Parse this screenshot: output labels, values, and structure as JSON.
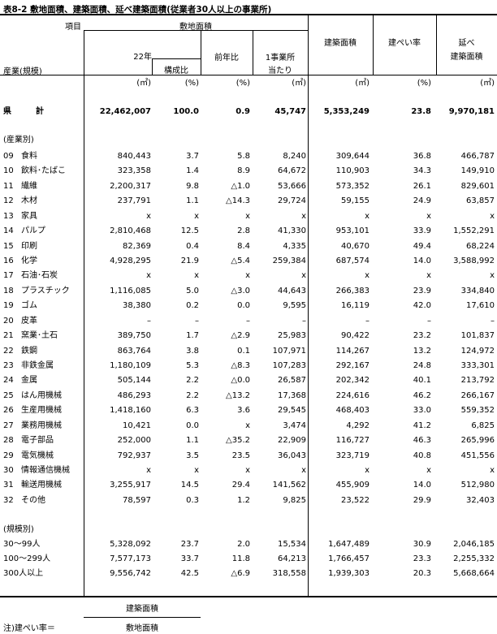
{
  "title": "表8-2  敷地面積、建築面積、延べ建築面積(従業者30人以上の事業所)",
  "header": {
    "item": "項目",
    "industry": "産業(規模)",
    "site_area": "敷地面積",
    "year": "22年",
    "composition": "構成比",
    "yoy": "前年比",
    "per_est_1": "1事業所",
    "per_est_2": "当たり",
    "building_area": "建築面積",
    "coverage": "建ぺい率",
    "floor_1": "延べ",
    "floor_2": "建築面積"
  },
  "units": [
    "(㎡)",
    "(%)",
    "(%)",
    "(㎡)",
    "(㎡)",
    "(%)",
    "(㎡)"
  ],
  "total": {
    "label_1": "県",
    "label_2": "計",
    "values": [
      "22,462,007",
      "100.0",
      "0.9",
      "45,747",
      "5,353,249",
      "23.8",
      "9,970,181"
    ]
  },
  "industry_section": "(産業別)",
  "industries": [
    {
      "code": "09",
      "name": "食料",
      "values": [
        "840,443",
        "3.7",
        "5.8",
        "8,240",
        "309,644",
        "36.8",
        "466,787"
      ]
    },
    {
      "code": "10",
      "name": "飲料･たばこ",
      "values": [
        "323,358",
        "1.4",
        "8.9",
        "64,672",
        "110,903",
        "34.3",
        "149,910"
      ]
    },
    {
      "code": "11",
      "name": "繊維",
      "values": [
        "2,200,317",
        "9.8",
        "△1.0",
        "53,666",
        "573,352",
        "26.1",
        "829,601"
      ]
    },
    {
      "code": "12",
      "name": "木材",
      "values": [
        "237,791",
        "1.1",
        "△14.3",
        "29,724",
        "59,155",
        "24.9",
        "63,857"
      ]
    },
    {
      "code": "13",
      "name": "家具",
      "values": [
        "x",
        "x",
        "x",
        "x",
        "x",
        "x",
        "x"
      ]
    },
    {
      "code": "14",
      "name": "パルプ",
      "values": [
        "2,810,468",
        "12.5",
        "2.8",
        "41,330",
        "953,101",
        "33.9",
        "1,552,291"
      ]
    },
    {
      "code": "15",
      "name": "印刷",
      "values": [
        "82,369",
        "0.4",
        "8.4",
        "4,335",
        "40,670",
        "49.4",
        "68,224"
      ]
    },
    {
      "code": "16",
      "name": "化学",
      "values": [
        "4,928,295",
        "21.9",
        "△5.4",
        "259,384",
        "687,574",
        "14.0",
        "3,588,992"
      ]
    },
    {
      "code": "17",
      "name": "石油･石炭",
      "values": [
        "x",
        "x",
        "x",
        "x",
        "x",
        "x",
        "x"
      ]
    },
    {
      "code": "18",
      "name": "プラスチック",
      "values": [
        "1,116,085",
        "5.0",
        "△3.0",
        "44,643",
        "266,383",
        "23.9",
        "334,840"
      ]
    },
    {
      "code": "19",
      "name": "ゴム",
      "values": [
        "38,380",
        "0.2",
        "0.0",
        "9,595",
        "16,119",
        "42.0",
        "17,610"
      ]
    },
    {
      "code": "20",
      "name": "皮革",
      "values": [
        "–",
        "–",
        "–",
        "–",
        "–",
        "–",
        "–"
      ]
    },
    {
      "code": "21",
      "name": "窯業･土石",
      "values": [
        "389,750",
        "1.7",
        "△2.9",
        "25,983",
        "90,422",
        "23.2",
        "101,837"
      ]
    },
    {
      "code": "22",
      "name": "鉄鋼",
      "values": [
        "863,764",
        "3.8",
        "0.1",
        "107,971",
        "114,267",
        "13.2",
        "124,972"
      ]
    },
    {
      "code": "23",
      "name": "非鉄金属",
      "values": [
        "1,180,109",
        "5.3",
        "△8.3",
        "107,283",
        "292,167",
        "24.8",
        "333,301"
      ]
    },
    {
      "code": "24",
      "name": "金属",
      "values": [
        "505,144",
        "2.2",
        "△0.0",
        "26,587",
        "202,342",
        "40.1",
        "213,792"
      ]
    },
    {
      "code": "25",
      "name": "はん用機械",
      "values": [
        "486,293",
        "2.2",
        "△13.2",
        "17,368",
        "224,616",
        "46.2",
        "266,167"
      ]
    },
    {
      "code": "26",
      "name": "生産用機械",
      "values": [
        "1,418,160",
        "6.3",
        "3.6",
        "29,545",
        "468,403",
        "33.0",
        "559,352"
      ]
    },
    {
      "code": "27",
      "name": "業務用機械",
      "values": [
        "10,421",
        "0.0",
        "x",
        "3,474",
        "4,292",
        "41.2",
        "6,825"
      ]
    },
    {
      "code": "28",
      "name": "電子部品",
      "values": [
        "252,000",
        "1.1",
        "△35.2",
        "22,909",
        "116,727",
        "46.3",
        "265,996"
      ]
    },
    {
      "code": "29",
      "name": "電気機械",
      "values": [
        "792,937",
        "3.5",
        "23.5",
        "36,043",
        "323,719",
        "40.8",
        "451,556"
      ]
    },
    {
      "code": "30",
      "name": "情報通信機械",
      "values": [
        "x",
        "x",
        "x",
        "x",
        "x",
        "x",
        "x"
      ]
    },
    {
      "code": "31",
      "name": "輸送用機械",
      "values": [
        "3,255,917",
        "14.5",
        "29.4",
        "141,562",
        "455,909",
        "14.0",
        "512,980"
      ]
    },
    {
      "code": "32",
      "name": "その他",
      "values": [
        "78,597",
        "0.3",
        "1.2",
        "9,825",
        "23,522",
        "29.9",
        "32,403"
      ]
    }
  ],
  "size_section": "(規模別)",
  "sizes": [
    {
      "name": "30〜99人",
      "values": [
        "5,328,092",
        "23.7",
        "2.0",
        "15,534",
        "1,647,489",
        "30.9",
        "2,046,185"
      ]
    },
    {
      "name": "100〜299人",
      "values": [
        "7,577,173",
        "33.7",
        "11.8",
        "64,213",
        "1,766,457",
        "23.3",
        "2,255,332"
      ]
    },
    {
      "name": "300人以上",
      "values": [
        "9,556,742",
        "42.5",
        "△6.9",
        "318,558",
        "1,939,303",
        "20.3",
        "5,668,664"
      ]
    }
  ],
  "note": {
    "label": "注)建ぺい率＝",
    "numerator": "建築面積",
    "denominator": "敷地面積"
  }
}
